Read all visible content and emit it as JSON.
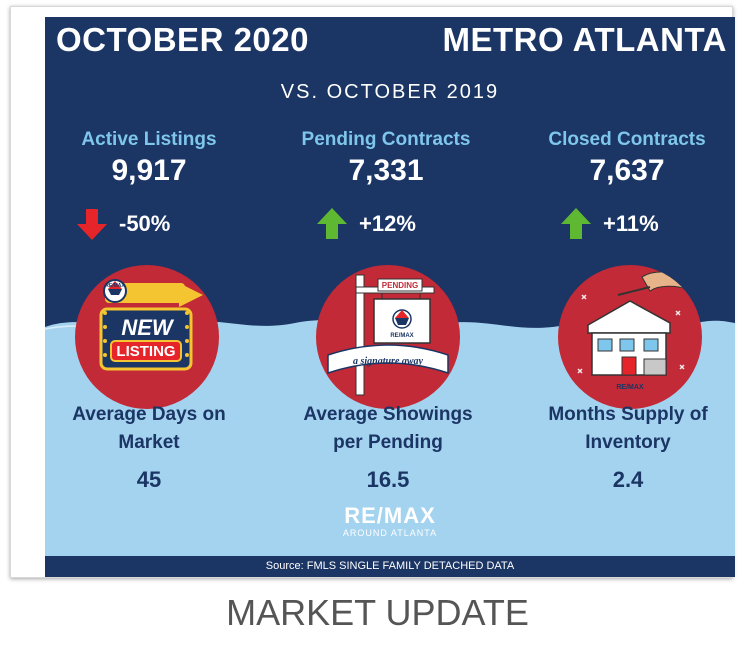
{
  "header": {
    "title_left": "OCTOBER 2020",
    "title_right": "METRO ATLANTA",
    "subtitle": "VS. OCTOBER 2019"
  },
  "stats": [
    {
      "label": "Active Listings",
      "value": "9,917",
      "change": "-50%",
      "direction": "down",
      "arrow_color": "#e5252a"
    },
    {
      "label": "Pending Contracts",
      "value": "7,331",
      "change": "+12%",
      "direction": "up",
      "arrow_color": "#5fb831"
    },
    {
      "label": "Closed Contracts",
      "value": "7,637",
      "change": "+11%",
      "direction": "up",
      "arrow_color": "#5fb831"
    }
  ],
  "illustrations": [
    {
      "icon": "new-listing-sign-icon",
      "brand": "RE/MAX",
      "line1": "NEW",
      "line2": "LISTING"
    },
    {
      "icon": "pending-sign-icon",
      "sign_text": "PENDING",
      "brand": "RE/MAX",
      "banner": "a signature away"
    },
    {
      "icon": "house-reveal-icon",
      "brand": "RE/MAX"
    }
  ],
  "metrics": [
    {
      "label_line1": "Average Days on",
      "label_line2": "Market",
      "value": "45"
    },
    {
      "label_line1": "Average Showings",
      "label_line2": "per Pending",
      "value": "16.5"
    },
    {
      "label_line1": "Months Supply of",
      "label_line2": "Inventory",
      "value": "2.4"
    }
  ],
  "logo": {
    "main": "RE/MAX",
    "sub": "AROUND ATLANTA"
  },
  "source": "Source: FMLS SINGLE FAMILY DETACHED DATA",
  "caption": "MARKET UPDATE",
  "colors": {
    "navy": "#1b3564",
    "light_blue": "#a4d3f0",
    "accent_blue": "#7ec6ec",
    "red_circle": "#c12a36"
  }
}
